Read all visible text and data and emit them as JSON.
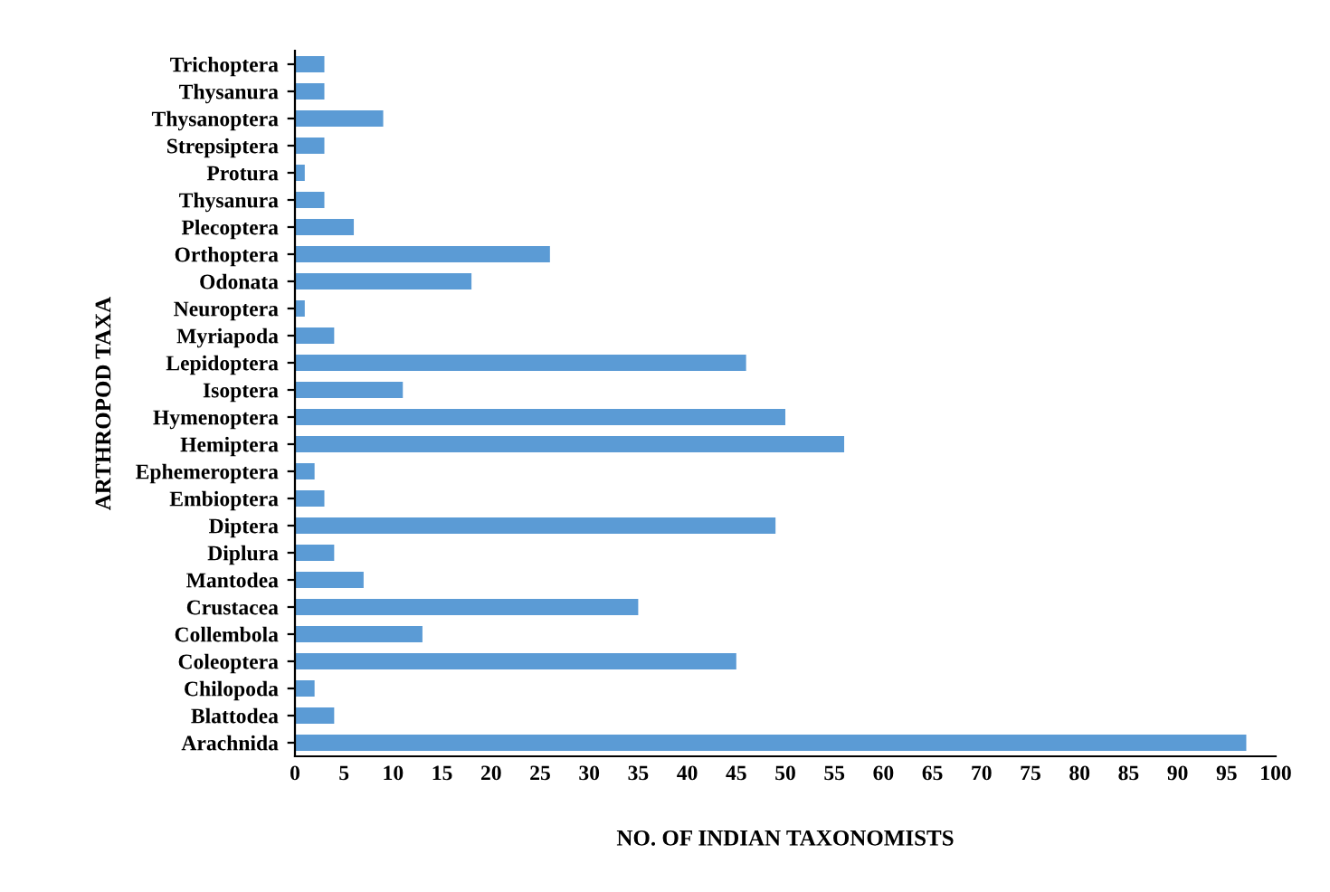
{
  "chart_data": {
    "type": "bar",
    "orientation": "horizontal",
    "xlabel": "NO. OF INDIAN TAXONOMISTS",
    "ylabel": "ARTHROPOD TAXA",
    "categories": [
      "Trichoptera",
      "Thysanura",
      "Thysanoptera",
      "Strepsiptera",
      "Protura",
      "Thysanura",
      "Plecoptera",
      "Orthoptera",
      "Odonata",
      "Neuroptera",
      "Myriapoda",
      "Lepidoptera",
      "Isoptera",
      "Hymenoptera",
      "Hemiptera",
      "Ephemeroptera",
      "Embioptera",
      "Diptera",
      "Diplura",
      "Mantodea",
      "Crustacea",
      "Collembola",
      "Coleoptera",
      "Chilopoda",
      "Blattodea",
      "Arachnida"
    ],
    "values": [
      3,
      3,
      9,
      3,
      1,
      3,
      6,
      26,
      18,
      1,
      4,
      46,
      11,
      50,
      56,
      2,
      3,
      49,
      4,
      7,
      35,
      13,
      45,
      2,
      4,
      97
    ],
    "color": "#5b9bd5",
    "xlim": [
      0,
      100
    ],
    "xticks": [
      0,
      5,
      10,
      15,
      20,
      25,
      30,
      35,
      40,
      45,
      50,
      55,
      60,
      65,
      70,
      75,
      80,
      85,
      90,
      95,
      100
    ],
    "grid": false,
    "legend": false
  }
}
